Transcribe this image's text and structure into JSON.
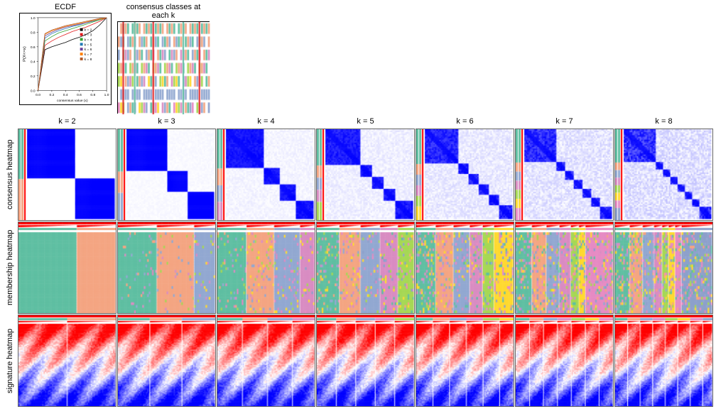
{
  "top_panels": {
    "ecdf": {
      "title": "ECDF",
      "ylabel": "P(X<=x)",
      "xlabel": "consensus value (x)",
      "xlim": [
        0.0,
        1.0
      ],
      "ylim": [
        0.0,
        1.0
      ],
      "xtick_labels": [
        "0.0",
        "0.2",
        "0.4",
        "0.6",
        "0.8",
        "1.0"
      ],
      "ytick_labels": [
        "0.0",
        "0.2",
        "0.4",
        "0.6",
        "0.8",
        "1.0"
      ],
      "curves": [
        {
          "k": 2,
          "color": "#000000",
          "y": [
            0.0,
            0.56,
            0.6,
            0.63,
            0.66,
            0.7,
            0.73,
            0.77,
            0.82,
            0.9,
            1.0
          ]
        },
        {
          "k": 3,
          "color": "#e31a1c",
          "y": [
            0.0,
            0.62,
            0.68,
            0.73,
            0.77,
            0.81,
            0.84,
            0.87,
            0.91,
            0.95,
            1.0
          ]
        },
        {
          "k": 4,
          "color": "#33a02c",
          "y": [
            0.0,
            0.68,
            0.74,
            0.79,
            0.82,
            0.85,
            0.88,
            0.91,
            0.94,
            0.97,
            1.0
          ]
        },
        {
          "k": 5,
          "color": "#1f78b4",
          "y": [
            0.0,
            0.72,
            0.78,
            0.82,
            0.85,
            0.88,
            0.9,
            0.93,
            0.95,
            0.98,
            1.0
          ]
        },
        {
          "k": 6,
          "color": "#6a3d9a",
          "y": [
            0.0,
            0.75,
            0.8,
            0.84,
            0.87,
            0.89,
            0.91,
            0.93,
            0.96,
            0.98,
            1.0
          ]
        },
        {
          "k": 7,
          "color": "#ff7f00",
          "y": [
            0.0,
            0.77,
            0.82,
            0.85,
            0.88,
            0.9,
            0.92,
            0.94,
            0.96,
            0.98,
            1.0
          ]
        },
        {
          "k": 8,
          "color": "#b15928",
          "y": [
            0.0,
            0.78,
            0.83,
            0.86,
            0.89,
            0.91,
            0.93,
            0.95,
            0.97,
            0.99,
            1.0
          ]
        }
      ],
      "legend_labels": [
        "k = 2",
        "k = 3",
        "k = 4",
        "k = 5",
        "k = 6",
        "k = 7",
        "k = 8"
      ],
      "legend_colors": [
        "#000000",
        "#e31a1c",
        "#33a02c",
        "#1f78b4",
        "#6a3d9a",
        "#ff7f00",
        "#b15928"
      ]
    },
    "consensus_classes": {
      "title": "consensus classes at each k"
    }
  },
  "k_values": [
    2,
    3,
    4,
    5,
    6,
    7,
    8
  ],
  "col_headers": [
    "k = 2",
    "k = 3",
    "k = 4",
    "k = 5",
    "k = 6",
    "k = 7",
    "k = 8"
  ],
  "row_labels": [
    "consensus heatmap",
    "membership heatmap",
    "signature heatmap"
  ],
  "class_colors": [
    "#5fbfa2",
    "#f4a582",
    "#92a8d1",
    "#d98cc2",
    "#a6d854",
    "#ffd92f",
    "#e78ac3",
    "#8da0cb"
  ],
  "consensus_colormap": {
    "low": "#ffffff",
    "high": "#0000ff"
  },
  "signature_colormap": {
    "low": "#0000ff",
    "mid": "#ffffff",
    "high": "#ff0000"
  },
  "membership_colormap": {
    "low": "#ffffff",
    "high": "#ff0000"
  },
  "annotation_bar_color": "#ff0000",
  "background_color": "#ffffff",
  "border_color": "#666666",
  "fontsize_title": 11,
  "fontsize_label": 11,
  "fontsize_axis": 6
}
